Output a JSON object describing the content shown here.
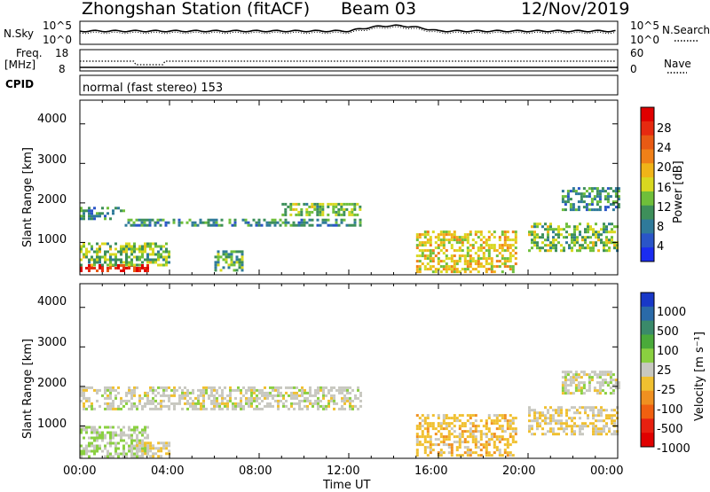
{
  "header": {
    "station": "Zhongshan Station (fitACF)",
    "beam": "Beam 03",
    "date": "12/Nov/2019"
  },
  "top_panel": {
    "left_label": "N.Sky",
    "left_ticks": [
      "10^5",
      "10^0"
    ],
    "right_ticks": [
      "10^5",
      "10^0"
    ],
    "right_label": "N.Search"
  },
  "freq_panel": {
    "left_label_1": "Freq.",
    "left_label_2": "[MHz]",
    "left_ticks": [
      "18",
      "8"
    ],
    "right_ticks": [
      "60",
      "0"
    ],
    "right_label": "Nave",
    "cpid_label": "CPID",
    "cpid_value": "normal (fast stereo) 153"
  },
  "chart_data": [
    {
      "type": "heatmap",
      "title": "",
      "xlabel": "Time UT",
      "ylabel": "Slant Range [km]",
      "xlim_hours": [
        0,
        24
      ],
      "ylim_km": [
        180,
        4600
      ],
      "x_ticks": [
        "00:00",
        "04:00",
        "08:00",
        "12:00",
        "16:00",
        "20:00",
        "00:00"
      ],
      "y_ticks": [
        "1000",
        "2000",
        "3000",
        "4000"
      ],
      "colorbar": {
        "label": "Power [dB]",
        "ticks": [
          "4",
          "8",
          "12",
          "16",
          "20",
          "24",
          "28"
        ],
        "colors": [
          "#1a2cf0",
          "#2a55c8",
          "#2f7a9a",
          "#3d8f5a",
          "#6fbf3a",
          "#d8d820",
          "#f0b418",
          "#f08018",
          "#e85a14",
          "#e62a10",
          "#e00000"
        ]
      },
      "echo_regions_approx": [
        {
          "t_start": 0.0,
          "t_end": 3.0,
          "range_km": [
            250,
            450
          ],
          "power_db": 28
        },
        {
          "t_start": 0.0,
          "t_end": 4.0,
          "range_km": [
            450,
            1000
          ],
          "power_db": 12
        },
        {
          "t_start": 0.0,
          "t_end": 2.0,
          "range_km": [
            1600,
            1900
          ],
          "power_db": 8
        },
        {
          "t_start": 2.0,
          "t_end": 12.5,
          "range_km": [
            1400,
            1600
          ],
          "power_db": 8
        },
        {
          "t_start": 9.0,
          "t_end": 12.5,
          "range_km": [
            1700,
            2000
          ],
          "power_db": 12
        },
        {
          "t_start": 6.0,
          "t_end": 7.3,
          "range_km": [
            300,
            800
          ],
          "power_db": 10
        },
        {
          "t_start": 15.0,
          "t_end": 19.5,
          "range_km": [
            250,
            1300
          ],
          "power_db": 16
        },
        {
          "t_start": 20.0,
          "t_end": 24.0,
          "range_km": [
            800,
            1500
          ],
          "power_db": 12
        },
        {
          "t_start": 21.5,
          "t_end": 24.0,
          "range_km": [
            1800,
            2400
          ],
          "power_db": 8
        }
      ]
    },
    {
      "type": "heatmap",
      "title": "",
      "xlabel": "Time UT",
      "ylabel": "Slant Range [km]",
      "xlim_hours": [
        0,
        24
      ],
      "ylim_km": [
        180,
        4600
      ],
      "x_ticks": [
        "00:00",
        "04:00",
        "08:00",
        "12:00",
        "16:00",
        "20:00",
        "00:00"
      ],
      "y_ticks": [
        "1000",
        "2000",
        "3000",
        "4000"
      ],
      "colorbar": {
        "label": "Velocity [m s⁻¹]",
        "ticks": [
          "1000",
          "500",
          "100",
          "25",
          "-25",
          "-100",
          "-500",
          "-1000"
        ],
        "colors": [
          "#1838c8",
          "#2a6aa8",
          "#3a8a6a",
          "#4aaa3a",
          "#8ad040",
          "#c8c8c0",
          "#f0c030",
          "#f09020",
          "#f06010",
          "#e82010",
          "#e00000"
        ]
      },
      "echo_regions_approx": [
        {
          "t_start": 0.0,
          "t_end": 3.0,
          "range_km": [
            250,
            1000
          ],
          "velocity_ms": 100
        },
        {
          "t_start": 2.5,
          "t_end": 4.0,
          "range_km": [
            250,
            600
          ],
          "velocity_ms": -100
        },
        {
          "t_start": 0.0,
          "t_end": 12.5,
          "range_km": [
            1400,
            2000
          ],
          "velocity_ms": 0
        },
        {
          "t_start": 15.0,
          "t_end": 19.5,
          "range_km": [
            250,
            1300
          ],
          "velocity_ms": -200
        },
        {
          "t_start": 20.0,
          "t_end": 24.0,
          "range_km": [
            800,
            1500
          ],
          "velocity_ms": -100
        },
        {
          "t_start": 21.5,
          "t_end": 24.0,
          "range_km": [
            1800,
            2400
          ],
          "velocity_ms": 0
        }
      ]
    }
  ]
}
